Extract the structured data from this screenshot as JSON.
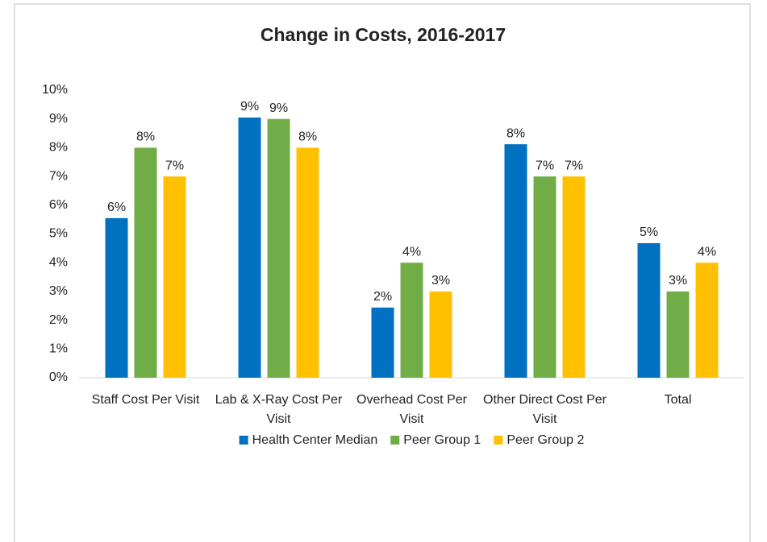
{
  "chart_data": {
    "type": "bar",
    "title": "Change in Costs, 2016-2017",
    "categories": [
      "Staff Cost Per Visit",
      "Lab & X-Ray Cost Per Visit",
      "Overhead Cost Per Visit",
      "Other Direct Cost Per Visit",
      "Total"
    ],
    "series": [
      {
        "name": "Health Center Median",
        "color": "#0070c0",
        "values": [
          5.55,
          9.05,
          2.44,
          8.12,
          4.68
        ],
        "value_labels": [
          "6%",
          "9%",
          "2%",
          "8%",
          "5%"
        ]
      },
      {
        "name": "Peer Group 1",
        "color": "#70ad47",
        "values": [
          8,
          9,
          4,
          7,
          3
        ],
        "value_labels": [
          "8%",
          "9%",
          "4%",
          "7%",
          "3%"
        ]
      },
      {
        "name": "Peer Group 2",
        "color": "#ffc000",
        "values": [
          7,
          8,
          3,
          7,
          4
        ],
        "value_labels": [
          "7%",
          "8%",
          "3%",
          "7%",
          "4%"
        ]
      }
    ],
    "ylim": [
      0,
      10
    ],
    "yticks": [
      {
        "value": 0,
        "label": "0%"
      },
      {
        "value": 1,
        "label": "1%"
      },
      {
        "value": 2,
        "label": "2%"
      },
      {
        "value": 3,
        "label": "3%"
      },
      {
        "value": 4,
        "label": "4%"
      },
      {
        "value": 5,
        "label": "5%"
      },
      {
        "value": 6,
        "label": "6%"
      },
      {
        "value": 7,
        "label": "7%"
      },
      {
        "value": 8,
        "label": "8%"
      },
      {
        "value": 9,
        "label": "9%"
      },
      {
        "value": 10,
        "label": "10%"
      }
    ],
    "grid": false,
    "legend": "bottom"
  }
}
